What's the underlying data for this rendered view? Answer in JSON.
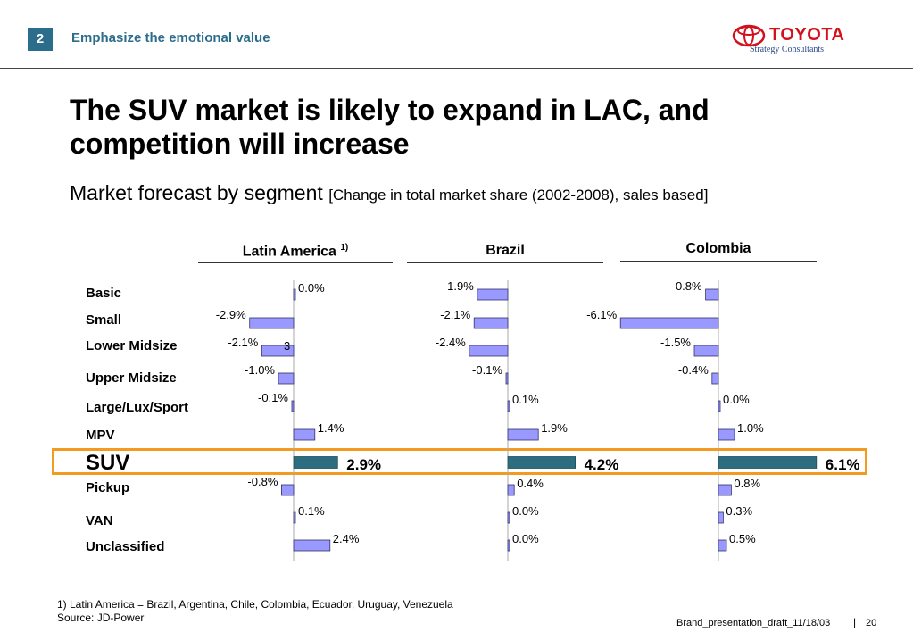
{
  "header": {
    "slide_number": "2",
    "kicker": "Emphasize the emotional value",
    "logo_text": "TOYOTA",
    "logo_sub": "Strategy Consultants"
  },
  "title": "The SUV market is likely to expand in LAC, and competition will increase",
  "subtitle": "Market forecast by segment",
  "subtitle_note": "[Change in total market share (2002-2008), sales based]",
  "footer": {
    "footnote_1": "1) Latin America = Brazil, Argentina, Chile, Colombia, Ecuador, Uruguay,  Venezuela",
    "source": "Source: JD-Power",
    "file": "Brand_presentation_draft_11/18/03",
    "separator": "|",
    "page": "20"
  },
  "stray_mark": "3",
  "colors": {
    "bar": "#9999ff",
    "highlight_bar": "#2c6d7f",
    "box": "#f39a21",
    "accent": "#2c6d8c"
  },
  "chart_data": {
    "type": "bar",
    "orientation": "horizontal",
    "unit": "%",
    "categories": [
      "Basic",
      "Small",
      "Lower Midsize",
      "Upper Midsize",
      "Large/Lux/Sport",
      "MPV",
      "SUV",
      "Pickup",
      "VAN",
      "Unclassified"
    ],
    "highlight_category": "SUV",
    "panels": [
      {
        "name": "Latin America",
        "name_sup": "1)",
        "values": [
          0.0,
          -2.9,
          -2.1,
          -1.0,
          -0.1,
          1.4,
          2.9,
          -0.8,
          0.1,
          2.4
        ],
        "labels": [
          "0.0%",
          "-2.9%",
          "-2.1%",
          "-1.0%",
          "-0.1%",
          "1.4%",
          "2.9%",
          "-0.8%",
          "0.1%",
          "2.4%"
        ]
      },
      {
        "name": "Brazil",
        "name_sup": "",
        "values": [
          -1.9,
          -2.1,
          -2.4,
          -0.1,
          0.1,
          1.9,
          4.2,
          0.4,
          0.0,
          0.0
        ],
        "labels": [
          "-1.9%",
          "-2.1%",
          "-2.4%",
          "-0.1%",
          "0.1%",
          "1.9%",
          "4.2%",
          "0.4%",
          "0.0%",
          "0.0%"
        ]
      },
      {
        "name": "Colombia",
        "name_sup": "",
        "values": [
          -0.8,
          -6.1,
          -1.5,
          -0.4,
          0.0,
          1.0,
          6.1,
          0.8,
          0.3,
          0.5
        ],
        "labels": [
          "-0.8%",
          "-6.1%",
          "-1.5%",
          "-0.4%",
          "0.0%",
          "1.0%",
          "6.1%",
          "0.8%",
          "0.3%",
          "0.5%"
        ]
      }
    ]
  }
}
